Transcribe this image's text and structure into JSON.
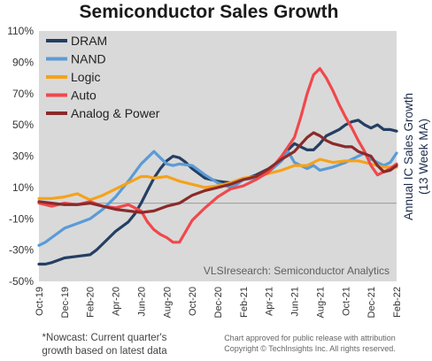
{
  "chart_data": {
    "type": "line",
    "title": "Semiconductor Sales Growth",
    "ylabel_lines": [
      "Annual IC Sales Growth",
      "(13 Week MA)"
    ],
    "xlabel": "",
    "x_labels": [
      "Oct-19",
      "Dec-19",
      "Feb-20",
      "Apr-20",
      "Jun-20",
      "Aug-20",
      "Oct-20",
      "Dec-20",
      "Feb-21",
      "Apr-21",
      "Jun-21",
      "Aug-21",
      "Oct-21",
      "Dec-21",
      "Feb-22"
    ],
    "x_range": [
      0,
      28
    ],
    "ylim": [
      -50,
      110
    ],
    "y_ticks": [
      -50,
      -30,
      -10,
      10,
      30,
      50,
      70,
      90,
      110
    ],
    "y_tick_labels": [
      "-50%",
      "-30%",
      "-10%",
      "10%",
      "30%",
      "50%",
      "70%",
      "90%",
      "110%"
    ],
    "grid": false,
    "zero_line": true,
    "plot_background": "#d9d9d9",
    "legend_position": "top-left",
    "source_label": "VLSIresearch: Semiconductor Analytics",
    "footnote": [
      "*Nowcast: Current  quarter's",
      "growth based on latest data"
    ],
    "copyright": [
      "Chart approved for public release with attribution",
      "Copyright © TechInsights  Inc.  All rights reserved."
    ],
    "series": [
      {
        "name": "DRAM",
        "color": "#243f63",
        "points": [
          [
            0,
            -39
          ],
          [
            0.5,
            -39
          ],
          [
            1,
            -38
          ],
          [
            2,
            -35
          ],
          [
            3,
            -34
          ],
          [
            4,
            -33
          ],
          [
            4.5,
            -30
          ],
          [
            5,
            -26
          ],
          [
            6,
            -18
          ],
          [
            7,
            -12
          ],
          [
            7.5,
            -7
          ],
          [
            8,
            0
          ],
          [
            8.5,
            8
          ],
          [
            9,
            16
          ],
          [
            9.5,
            22
          ],
          [
            10,
            27
          ],
          [
            10.5,
            30
          ],
          [
            11,
            29
          ],
          [
            11.5,
            26
          ],
          [
            12,
            22
          ],
          [
            12.5,
            19
          ],
          [
            13,
            16
          ],
          [
            14,
            14
          ],
          [
            15,
            13
          ],
          [
            15.5,
            13
          ],
          [
            16,
            15
          ],
          [
            17,
            18
          ],
          [
            18,
            22
          ],
          [
            19,
            28
          ],
          [
            19.5,
            34
          ],
          [
            20,
            38
          ],
          [
            20.5,
            36
          ],
          [
            21,
            34
          ],
          [
            21.5,
            34
          ],
          [
            22,
            38
          ],
          [
            22.5,
            43
          ],
          [
            23,
            45
          ],
          [
            23.5,
            47
          ],
          [
            24,
            50
          ],
          [
            24.5,
            52
          ],
          [
            25,
            53
          ],
          [
            25.5,
            50
          ],
          [
            26,
            48
          ],
          [
            26.5,
            50
          ],
          [
            27,
            47
          ],
          [
            27.5,
            47
          ],
          [
            28,
            46
          ]
        ]
      },
      {
        "name": "NAND",
        "color": "#5b9bd5",
        "points": [
          [
            0,
            -27
          ],
          [
            0.5,
            -25
          ],
          [
            1,
            -22
          ],
          [
            2,
            -16
          ],
          [
            3,
            -13
          ],
          [
            4,
            -10
          ],
          [
            5,
            -4
          ],
          [
            6,
            4
          ],
          [
            7,
            14
          ],
          [
            8,
            25
          ],
          [
            9,
            33
          ],
          [
            9.5,
            29
          ],
          [
            10,
            25
          ],
          [
            10.5,
            24
          ],
          [
            11,
            25
          ],
          [
            12,
            24
          ],
          [
            13,
            18
          ],
          [
            14,
            13
          ],
          [
            15,
            10
          ],
          [
            15.5,
            12
          ],
          [
            16,
            15
          ],
          [
            17,
            16
          ],
          [
            18,
            20
          ],
          [
            19,
            27
          ],
          [
            19.5,
            33
          ],
          [
            20,
            26
          ],
          [
            21,
            22
          ],
          [
            21.5,
            24
          ],
          [
            22,
            21
          ],
          [
            23,
            23
          ],
          [
            24,
            26
          ],
          [
            25,
            30
          ],
          [
            25.5,
            32
          ],
          [
            26,
            28
          ],
          [
            27,
            24
          ],
          [
            27.5,
            26
          ],
          [
            28,
            32
          ]
        ]
      },
      {
        "name": "Logic",
        "color": "#f5a21a",
        "points": [
          [
            0,
            3
          ],
          [
            1,
            3
          ],
          [
            2,
            4
          ],
          [
            3,
            6
          ],
          [
            4,
            2
          ],
          [
            5,
            5
          ],
          [
            6,
            9
          ],
          [
            7,
            13
          ],
          [
            8,
            17
          ],
          [
            8.5,
            17
          ],
          [
            9,
            16
          ],
          [
            10,
            17
          ],
          [
            11,
            14
          ],
          [
            12,
            12
          ],
          [
            13,
            10
          ],
          [
            14,
            11
          ],
          [
            15,
            13
          ],
          [
            16,
            16
          ],
          [
            17,
            17
          ],
          [
            18,
            19
          ],
          [
            19,
            21
          ],
          [
            20,
            24
          ],
          [
            21,
            24
          ],
          [
            22,
            28
          ],
          [
            23,
            26
          ],
          [
            24,
            27
          ],
          [
            25,
            27
          ],
          [
            26,
            25
          ],
          [
            27,
            23
          ],
          [
            28,
            23
          ]
        ]
      },
      {
        "name": "Auto",
        "color": "#f0484c",
        "points": [
          [
            0,
            0
          ],
          [
            1,
            -2
          ],
          [
            2,
            0
          ],
          [
            3,
            -1
          ],
          [
            4,
            1
          ],
          [
            5,
            -2
          ],
          [
            6,
            -3
          ],
          [
            7,
            -1
          ],
          [
            8,
            -5
          ],
          [
            8.5,
            -12
          ],
          [
            9,
            -17
          ],
          [
            9.5,
            -20
          ],
          [
            10,
            -22
          ],
          [
            10.5,
            -25
          ],
          [
            11,
            -25
          ],
          [
            11.5,
            -18
          ],
          [
            12,
            -11
          ],
          [
            13,
            -3
          ],
          [
            14,
            4
          ],
          [
            15,
            9
          ],
          [
            16,
            11
          ],
          [
            17,
            15
          ],
          [
            18,
            20
          ],
          [
            18.5,
            25
          ],
          [
            19,
            30
          ],
          [
            19.5,
            36
          ],
          [
            20,
            42
          ],
          [
            20.5,
            55
          ],
          [
            21,
            70
          ],
          [
            21.5,
            82
          ],
          [
            22,
            86
          ],
          [
            22.5,
            80
          ],
          [
            23,
            72
          ],
          [
            23.5,
            63
          ],
          [
            24,
            55
          ],
          [
            24.5,
            48
          ],
          [
            25,
            40
          ],
          [
            25.5,
            33
          ],
          [
            26,
            24
          ],
          [
            26.5,
            18
          ],
          [
            27,
            20
          ],
          [
            27.5,
            22
          ],
          [
            28,
            25
          ]
        ]
      },
      {
        "name": "Analog & Power",
        "color": "#8b2a2a",
        "points": [
          [
            0,
            1
          ],
          [
            1,
            0
          ],
          [
            2,
            -1
          ],
          [
            3,
            -1
          ],
          [
            4,
            0
          ],
          [
            5,
            -2
          ],
          [
            6,
            -4
          ],
          [
            7,
            -5
          ],
          [
            8,
            -6
          ],
          [
            9,
            -5
          ],
          [
            10,
            -2
          ],
          [
            11,
            0
          ],
          [
            12,
            5
          ],
          [
            13,
            8
          ],
          [
            14,
            10
          ],
          [
            15,
            12
          ],
          [
            16,
            15
          ],
          [
            17,
            17
          ],
          [
            18,
            22
          ],
          [
            19,
            28
          ],
          [
            20,
            33
          ],
          [
            21,
            42
          ],
          [
            21.5,
            45
          ],
          [
            22,
            43
          ],
          [
            22.5,
            40
          ],
          [
            23,
            38
          ],
          [
            24,
            36
          ],
          [
            24.5,
            36
          ],
          [
            25,
            33
          ],
          [
            26,
            30
          ],
          [
            26.5,
            24
          ],
          [
            27,
            20
          ],
          [
            27.5,
            21
          ],
          [
            28,
            24
          ]
        ]
      }
    ]
  }
}
